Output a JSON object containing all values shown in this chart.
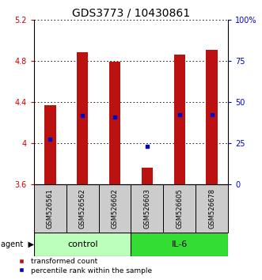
{
  "title": "GDS3773 / 10430861",
  "samples": [
    "GSM526561",
    "GSM526562",
    "GSM526602",
    "GSM526603",
    "GSM526605",
    "GSM526678"
  ],
  "bar_bottom": 3.6,
  "bar_tops": [
    4.37,
    4.88,
    4.79,
    3.76,
    4.86,
    4.91
  ],
  "percentile_values": [
    4.04,
    4.27,
    4.25,
    3.97,
    4.28,
    4.28
  ],
  "ylim": [
    3.6,
    5.2
  ],
  "yticks": [
    3.6,
    4.0,
    4.4,
    4.8,
    5.2
  ],
  "ytick_labels_left": [
    "3.6",
    "4",
    "4.4",
    "4.8",
    "5.2"
  ],
  "ytick_labels_right": [
    "0",
    "25",
    "50",
    "75",
    "100%"
  ],
  "bar_color": "#bb1111",
  "percentile_color": "#0000cc",
  "control_color": "#bbffbb",
  "il6_color": "#33dd33",
  "sample_box_color": "#cccccc",
  "title_fontsize": 10,
  "tick_fontsize": 7,
  "sample_fontsize": 6,
  "group_fontsize": 8,
  "legend_fontsize": 6.5,
  "left_tick_color": "#cc0000",
  "right_tick_color": "#0000cc",
  "bar_width": 0.35,
  "control_samples": [
    0,
    1,
    2
  ],
  "il6_samples": [
    3,
    4,
    5
  ]
}
